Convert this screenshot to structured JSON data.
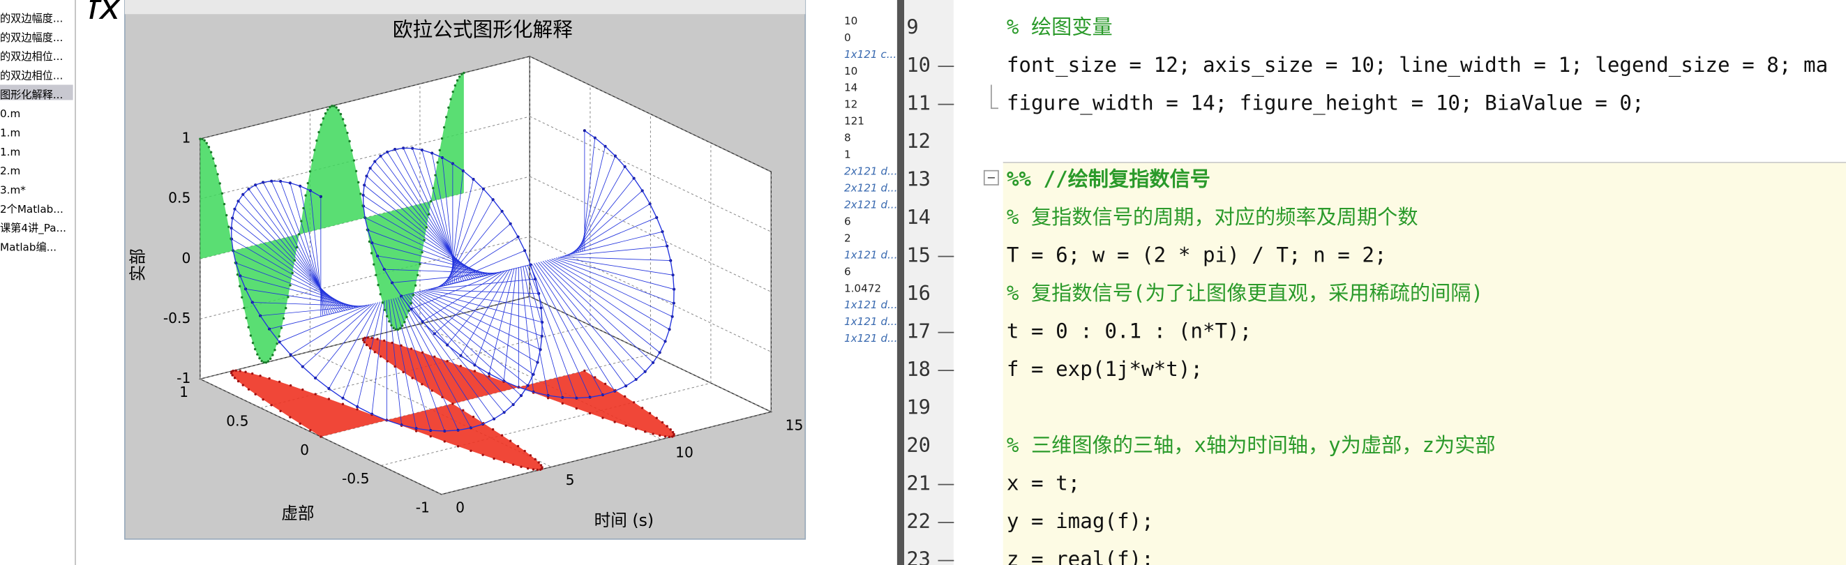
{
  "file_browser": {
    "items": [
      "的双边幅度...",
      "的双边幅度...",
      "的双边相位...",
      "的双边相位...",
      "图形化解释...",
      "0.m",
      "1.m",
      "1.m",
      "2.m",
      "3.m*",
      "2个Matlab...",
      "课第4讲_Pa...",
      "Matlab编..."
    ]
  },
  "toolbar": {
    "icon": "fx"
  },
  "figure": {
    "title": "欧拉公式图形化解释",
    "zlabel": "实部",
    "ylabel": "虚部",
    "xlabel": "时间 (s)",
    "zticks": [
      "1",
      "0.5",
      "0",
      "-0.5",
      "-1"
    ],
    "yticks": [
      "1",
      "0.5",
      "0",
      "-0.5",
      "-1"
    ],
    "xticks": [
      "0",
      "5",
      "10",
      "15"
    ]
  },
  "workspace": {
    "values": [
      "10",
      "0",
      "1x121 c...",
      "10",
      "14",
      "12",
      "121",
      "8",
      "1",
      "2x121 d...",
      "2x121 d...",
      "2x121 d...",
      "6",
      "2",
      "1x121 d...",
      "6",
      "1.0472",
      "1x121 d...",
      "1x121 d...",
      "1x121 d..."
    ]
  },
  "editor": {
    "lines": [
      {
        "number": "9",
        "code": "% 绘图变量"
      },
      {
        "number": "10",
        "marker": "—",
        "code": "font_size = 12; axis_size = 10; line_width = 1; legend_size = 8; ma"
      },
      {
        "number": "11",
        "marker": "—",
        "code": "figure_width = 14; figure_height = 10; BiaValue = 0;"
      },
      {
        "number": "12"
      },
      {
        "number": "13",
        "code": "%% //绘制复指数信号"
      },
      {
        "number": "14",
        "code": "% 复指数信号的周期，对应的频率及周期个数"
      },
      {
        "number": "15",
        "marker": "—",
        "code": "T = 6; w = (2 * pi) / T; n = 2;"
      },
      {
        "number": "16",
        "code": "% 复指数信号(为了让图像更直观，采用稀疏的间隔)"
      },
      {
        "number": "17",
        "marker": "—",
        "code": "t = 0 : 0.1 : (n*T);"
      },
      {
        "number": "18",
        "marker": "—",
        "code": "f = exp(1j*w*t);"
      },
      {
        "number": "19"
      },
      {
        "number": "20",
        "code": "% 三维图像的三轴，x轴为时间轴，y为虚部，z为实部"
      },
      {
        "number": "21",
        "marker": "—",
        "code": "x = t;"
      },
      {
        "number": "22",
        "marker": "—",
        "code": "y = imag(f);"
      },
      {
        "number": "23",
        "marker": "—",
        "code": "z = real(f);"
      }
    ]
  }
}
